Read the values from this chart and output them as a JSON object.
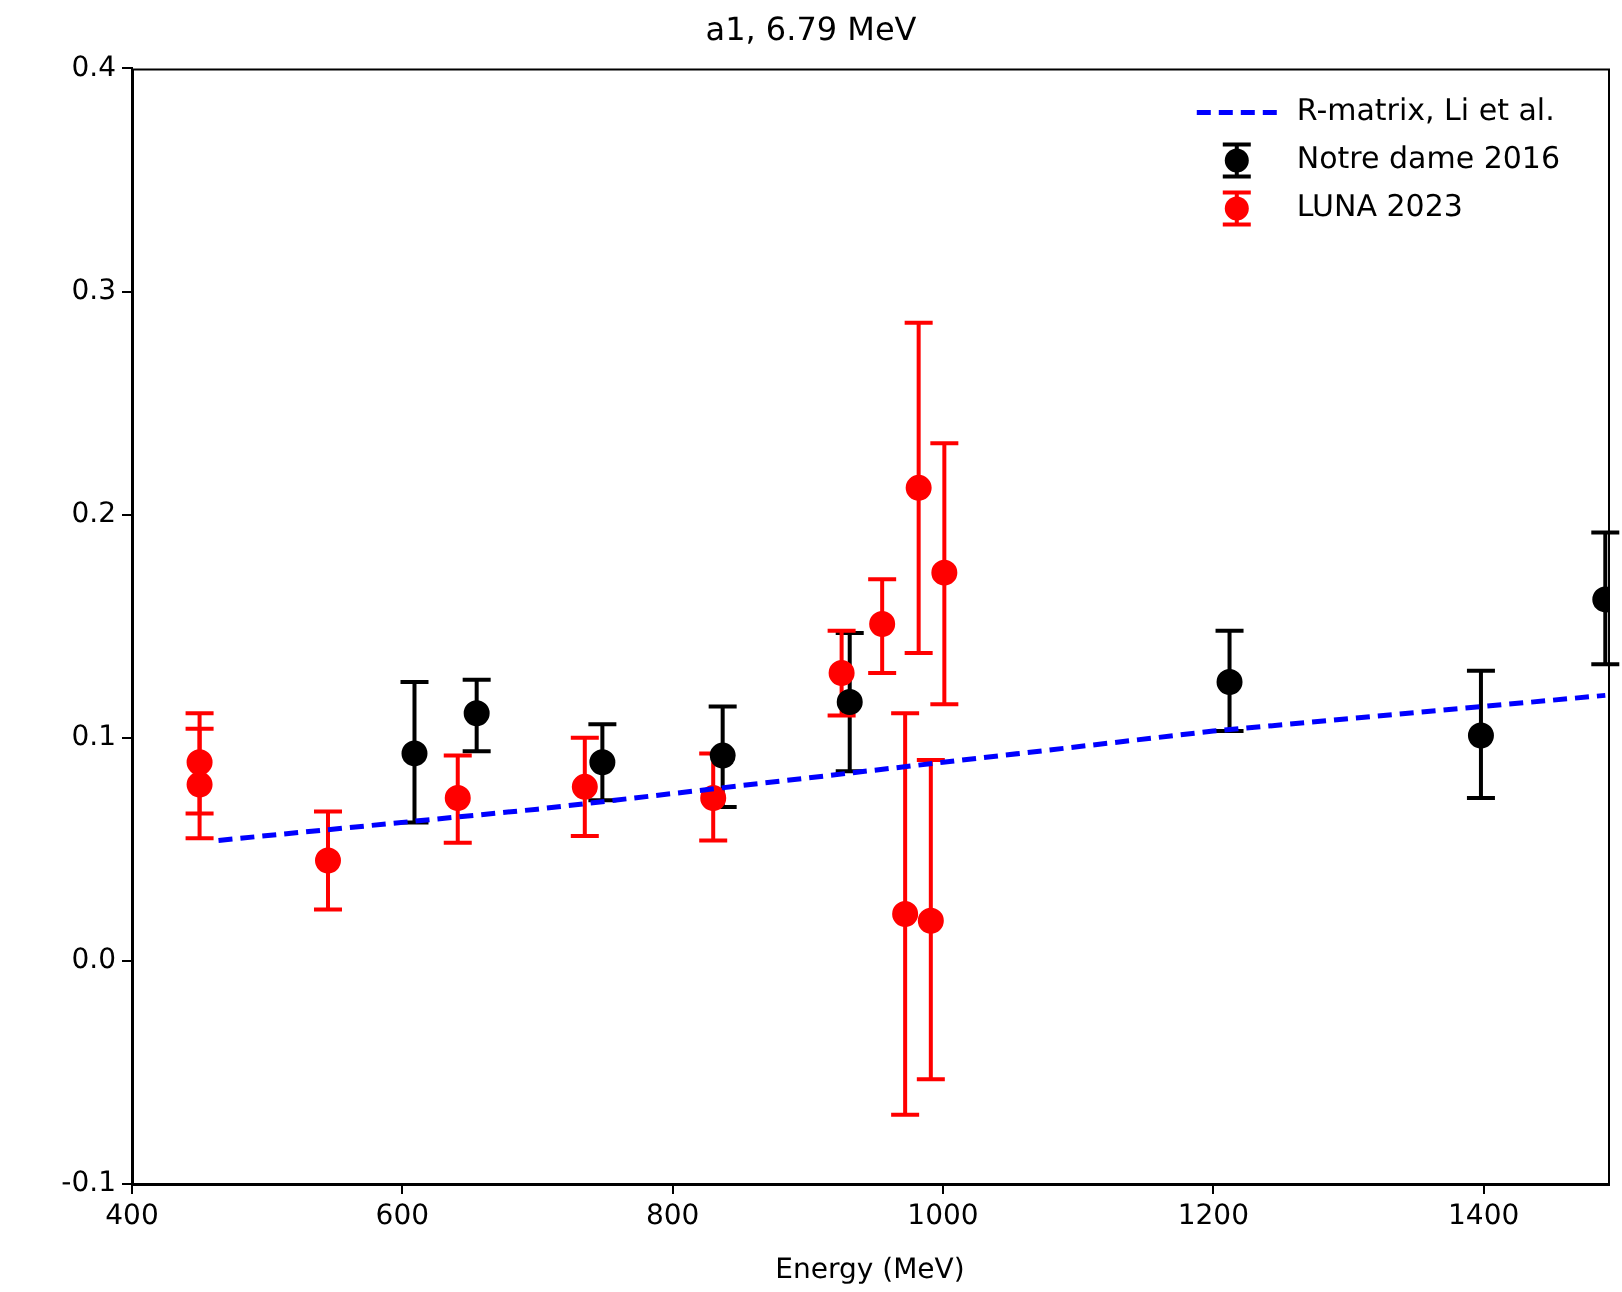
{
  "chart_data": {
    "type": "scatter",
    "title": "a1, 6.79 MeV",
    "xlabel": "Energy (MeV)",
    "xlim": [
      400,
      1492
    ],
    "xticks": [
      400,
      600,
      800,
      1000,
      1200,
      1400
    ],
    "ylim": [
      -0.1,
      0.4
    ],
    "yticks": [
      -0.1,
      {
        "value": 0,
        "label": "0.0"
      },
      0.1,
      0.2,
      0.3,
      0.4
    ],
    "grid": false,
    "legend": "top right",
    "marker": "circle",
    "series": [
      {
        "name": "R-matrix, Li et al.",
        "type": "line",
        "line_style": "dashed",
        "marker": "none",
        "color": "#0000ff",
        "x": [
          464,
          700,
          1000,
          1200,
          1490
        ],
        "values": [
          0.054,
          0.068,
          0.089,
          0.103,
          0.119
        ]
      },
      {
        "name": "Notre dame 2016",
        "type": "scatter",
        "color": "#000000",
        "x": [
          609,
          655,
          748,
          837,
          931,
          1212,
          1398,
          1490
        ],
        "values": [
          0.093,
          0.111,
          0.089,
          0.092,
          0.116,
          0.125,
          0.101,
          0.162
        ],
        "errors": [
          [
            0.062,
            0.125
          ],
          [
            0.094,
            0.126
          ],
          [
            0.072,
            0.106
          ],
          [
            0.069,
            0.114
          ],
          [
            0.085,
            0.147
          ],
          [
            0.103,
            0.148
          ],
          [
            0.073,
            0.13
          ],
          [
            0.133,
            0.192
          ]
        ]
      },
      {
        "name": "LUNA 2023",
        "type": "scatter",
        "color": "#ff0000",
        "x": [
          450,
          450,
          545,
          641,
          735,
          830,
          925,
          955,
          972,
          982,
          991,
          1001
        ],
        "values": [
          0.089,
          0.079,
          0.045,
          0.073,
          0.078,
          0.073,
          0.129,
          0.151,
          0.021,
          0.212,
          0.018,
          0.174
        ],
        "errors": [
          [
            0.055,
            0.111
          ],
          [
            0.066,
            0.104
          ],
          [
            0.023,
            0.067
          ],
          [
            0.053,
            0.092
          ],
          [
            0.056,
            0.1
          ],
          [
            0.054,
            0.093
          ],
          [
            0.11,
            0.148
          ],
          [
            0.129,
            0.171
          ],
          [
            -0.069,
            0.111
          ],
          [
            0.138,
            0.286
          ],
          [
            -0.053,
            0.09
          ],
          [
            0.115,
            0.232
          ]
        ]
      }
    ]
  }
}
